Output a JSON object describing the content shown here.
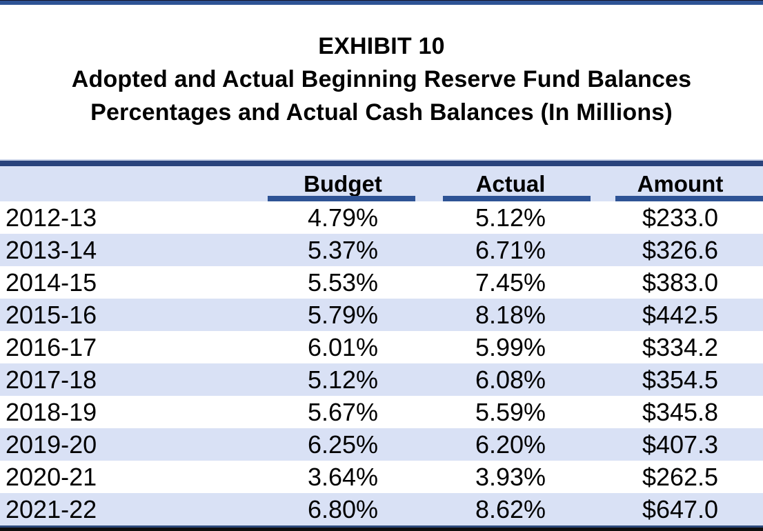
{
  "title": {
    "line1": "EXHIBIT 10",
    "line2": "Adopted and Actual Beginning Reserve Fund Balances",
    "line3": "Percentages and Actual Cash Balances (In Millions)"
  },
  "table": {
    "columns": [
      "",
      "Budget",
      "Actual",
      "Amount"
    ],
    "rows": [
      {
        "year": "2012-13",
        "budget": "4.79%",
        "actual": "5.12%",
        "amount": "$233.0"
      },
      {
        "year": "2013-14",
        "budget": "5.37%",
        "actual": "6.71%",
        "amount": "$326.6"
      },
      {
        "year": "2014-15",
        "budget": "5.53%",
        "actual": "7.45%",
        "amount": "$383.0"
      },
      {
        "year": "2015-16",
        "budget": "5.79%",
        "actual": "8.18%",
        "amount": "$442.5"
      },
      {
        "year": "2016-17",
        "budget": "6.01%",
        "actual": "5.99%",
        "amount": "$334.2"
      },
      {
        "year": "2017-18",
        "budget": "5.12%",
        "actual": "6.08%",
        "amount": "$354.5"
      },
      {
        "year": "2018-19",
        "budget": "5.67%",
        "actual": "5.59%",
        "amount": "$345.8"
      },
      {
        "year": "2019-20",
        "budget": "6.25%",
        "actual": "6.20%",
        "amount": "$407.3"
      },
      {
        "year": "2020-21",
        "budget": "3.64%",
        "actual": "3.93%",
        "amount": "$262.5"
      },
      {
        "year": "2021-22",
        "budget": "6.80%",
        "actual": "8.62%",
        "amount": "$647.0"
      }
    ]
  },
  "colors": {
    "accent_blue": "#2e5395",
    "table_border_navy": "#2a437c",
    "band_background": "#d9e1f5",
    "bottom_edge_black": "#0e0e0e",
    "text": "#000000"
  }
}
